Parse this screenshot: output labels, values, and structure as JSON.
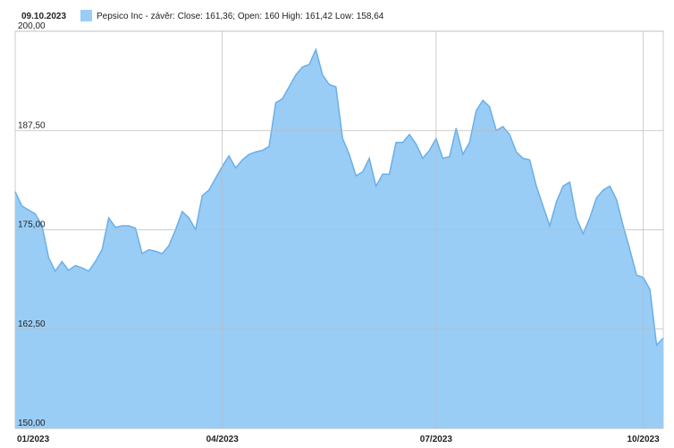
{
  "chart_data": {
    "type": "area",
    "date": "09.10.2023",
    "categories": [
      "01/2023",
      null,
      null,
      null,
      null,
      null,
      null,
      null,
      null,
      null,
      null,
      null,
      null,
      null,
      null,
      null,
      null,
      null,
      null,
      null,
      null,
      null,
      null,
      null,
      null,
      null,
      null,
      null,
      null,
      null,
      null,
      "04/2023",
      null,
      null,
      null,
      null,
      null,
      null,
      null,
      null,
      null,
      null,
      null,
      null,
      null,
      null,
      null,
      null,
      null,
      null,
      null,
      null,
      null,
      null,
      null,
      null,
      null,
      null,
      null,
      null,
      null,
      null,
      null,
      "07/2023",
      null,
      null,
      null,
      null,
      null,
      null,
      null,
      null,
      null,
      null,
      null,
      null,
      null,
      null,
      null,
      null,
      null,
      null,
      null,
      null,
      null,
      null,
      null,
      null,
      null,
      null,
      null,
      null,
      null,
      null,
      "10/2023",
      null,
      null,
      null
    ],
    "series": [
      {
        "name": "Pepsico Inc - závěr: Close: 161,36; Open: 160 High: 161,42 Low: 158,64",
        "color": "#99cdf6",
        "line_color": "#6aafe8",
        "values": [
          179.8,
          178.0,
          177.5,
          177.0,
          175.6,
          171.5,
          169.8,
          171.0,
          169.9,
          170.5,
          170.2,
          169.8,
          171.0,
          172.5,
          176.5,
          175.3,
          175.5,
          175.5,
          175.2,
          172.0,
          172.5,
          172.3,
          172.0,
          173.0,
          175.0,
          177.3,
          176.5,
          175.0,
          179.3,
          180.0,
          181.5,
          183.0,
          184.3,
          182.8,
          183.8,
          184.5,
          184.8,
          185.0,
          185.5,
          191.0,
          191.5,
          193.0,
          194.5,
          195.5,
          195.8,
          197.7,
          194.5,
          193.3,
          193.0,
          186.5,
          184.5,
          181.8,
          182.3,
          184.0,
          180.5,
          182.0,
          182.0,
          186.0,
          186.0,
          187.0,
          185.8,
          184.0,
          185.0,
          186.5,
          184.0,
          184.2,
          187.8,
          184.5,
          186.0,
          190.0,
          191.3,
          190.5,
          187.5,
          188.0,
          187.0,
          184.8,
          184.0,
          183.8,
          180.5,
          178.0,
          175.5,
          178.5,
          180.5,
          181.0,
          176.5,
          174.5,
          176.5,
          179.0,
          180.0,
          180.5,
          178.8,
          175.5,
          172.5,
          169.3,
          169.0,
          167.5,
          160.5,
          161.36
        ]
      }
    ],
    "ylim": [
      150,
      200
    ],
    "yticks": [
      {
        "value": 150,
        "label": "150,00"
      },
      {
        "value": 162.5,
        "label": "162,50"
      },
      {
        "value": 175,
        "label": "175,00"
      },
      {
        "value": 187.5,
        "label": "187,50"
      },
      {
        "value": 200,
        "label": "200,00"
      }
    ],
    "grid": true
  }
}
